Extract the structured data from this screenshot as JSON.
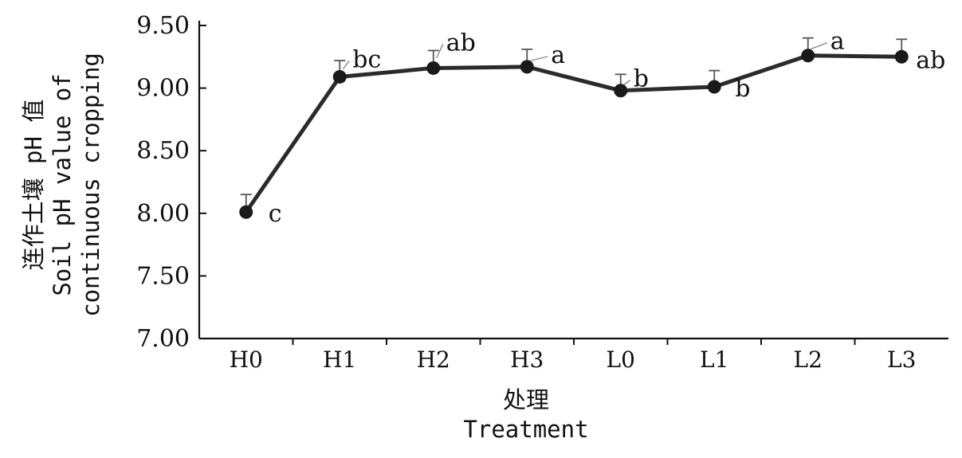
{
  "chart_data": {
    "type": "line",
    "categories": [
      "H0",
      "H1",
      "H2",
      "H3",
      "L0",
      "L1",
      "L2",
      "L3"
    ],
    "values": [
      8.01,
      9.09,
      9.16,
      9.17,
      8.98,
      9.01,
      9.26,
      9.25
    ],
    "error": [
      0.14,
      0.13,
      0.14,
      0.14,
      0.13,
      0.13,
      0.14,
      0.14
    ],
    "significance": [
      "c",
      "bc",
      "ab",
      "a",
      "b",
      "b",
      "a",
      "ab"
    ],
    "ylim": [
      7.0,
      9.5
    ],
    "yticks": [
      "7.00",
      "7.50",
      "8.00",
      "8.50",
      "9.00",
      "9.50"
    ],
    "xlabel_cn": "处理",
    "xlabel_en": "Treatment",
    "ylabel_cn": "连作土壤 pH 值",
    "ylabel_en_line1": "Soil pH value of",
    "ylabel_en_line2": "continuous cropping",
    "grid": false,
    "colors": {
      "line": "#2b2b2b",
      "marker": "#1a1a1a",
      "axis": "#111111"
    }
  }
}
